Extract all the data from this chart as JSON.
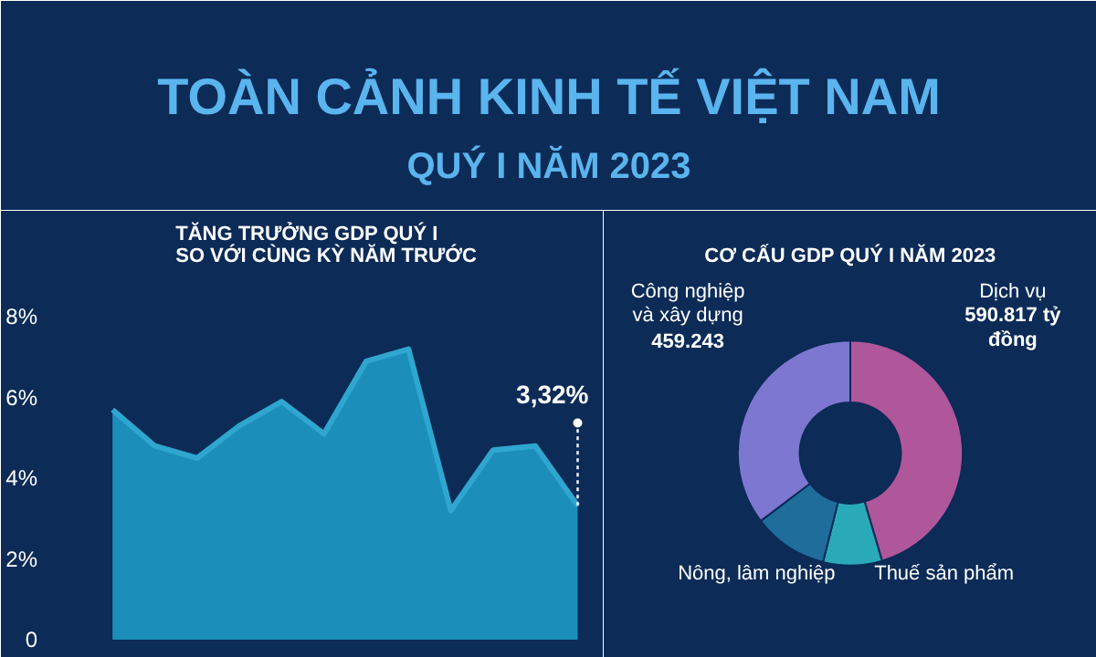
{
  "chart_data": [
    {
      "type": "area",
      "title": "TĂNG TRƯỞNG GDP QUÝ I\nSO VỚI CÙNG KỲ NĂM TRƯỚC",
      "annotations": [
        "TOÀN CẢNH KINH TẾ VIỆT NAM",
        "QUÝ I NĂM 2023"
      ],
      "categories": [
        null,
        null,
        null,
        null,
        null,
        null,
        null,
        null,
        null,
        null,
        null,
        null
      ],
      "series": [
        {
          "color": "#1b8fb9",
          "values": [
            5.7,
            4.8,
            4.5,
            5.3,
            5.9,
            5.1,
            6.9,
            7.2,
            3.2,
            4.7,
            4.8,
            3.32
          ],
          "value_labels": [
            null,
            null,
            null,
            null,
            null,
            null,
            null,
            null,
            null,
            null,
            null,
            "3,32%"
          ]
        }
      ],
      "ylim": [
        0,
        9
      ],
      "yticks": [
        {
          "value": 0,
          "label": "0"
        },
        {
          "value": 2,
          "label": "2%"
        },
        {
          "value": 4,
          "label": "4%"
        },
        {
          "value": 6,
          "label": "6%"
        },
        {
          "value": 8,
          "label": "8%"
        }
      ],
      "tick_labels": "y",
      "grid": false
    },
    {
      "type": "donut",
      "title": "CƠ CẤU GDP QUÝ I NĂM 2023",
      "categories": [
        "Dịch vụ",
        "Thuế sản phẩm",
        "Nông, lâm nghiệp",
        "Công nghiệp và xây dựng"
      ],
      "values": [
        590.817,
        110,
        140,
        459.243
      ],
      "colors": [
        "#b0569b",
        "#2aa9b9",
        "#1f6d9b",
        "#7d77d1"
      ],
      "value_labels": [
        "590.817 tỷ đồng",
        null,
        null,
        "459.243"
      ]
    }
  ]
}
